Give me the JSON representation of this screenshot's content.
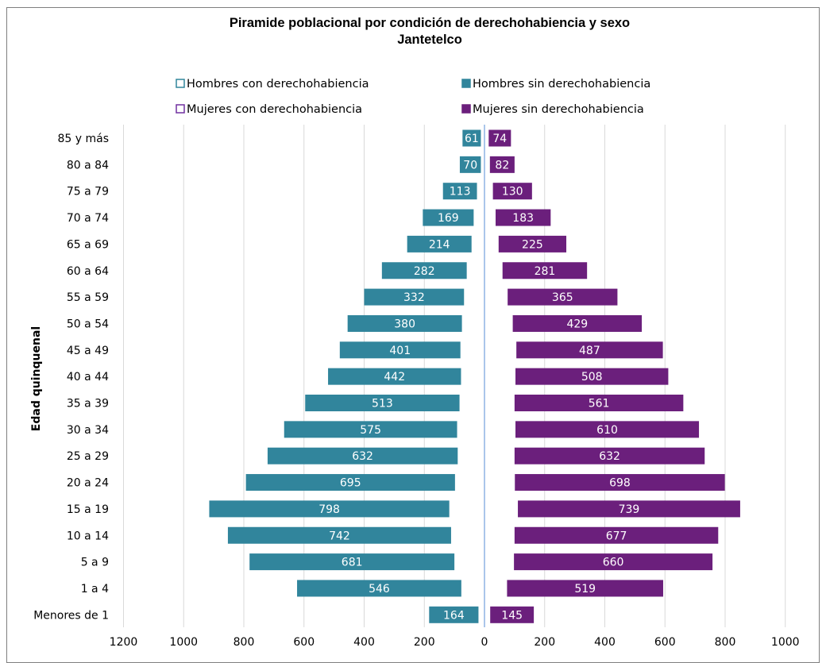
{
  "chart_data": {
    "type": "bar",
    "orientation": "horizontal-population-pyramid",
    "title": "Piramide poblacional por condición de derechohabiencia  y sexo",
    "subtitle": "Jantetelco",
    "ylabel": "Edad quinquenal",
    "xlabel": "",
    "xlim": [
      -1200,
      1000
    ],
    "x_ticks": [
      -1200,
      -1000,
      -800,
      -600,
      -400,
      -200,
      0,
      200,
      400,
      600,
      800,
      1000
    ],
    "x_tick_labels": [
      "1200",
      "1000",
      "800",
      "600",
      "400",
      "200",
      "0",
      "200",
      "400",
      "600",
      "800",
      "1000"
    ],
    "grid": true,
    "legend_position": "top",
    "categories": [
      "85 y más",
      "80 a 84",
      "75 a 79",
      "70 a 74",
      "65 a 69",
      "60 a 64",
      "55 a 59",
      "50 a 54",
      "45 a 49",
      "40 a 44",
      "35 a 39",
      "30 a 34",
      "25 a 29",
      "20 a 24",
      "15 a 19",
      "10 a 14",
      "5 a 9",
      "1 a 4",
      "Menores de 1"
    ],
    "series": [
      {
        "name": "Hombres con derechohabiencia",
        "side": "left",
        "fill": "#ffffff",
        "stroke": "#31859c",
        "values": [
          12,
          12,
          25,
          36,
          43,
          59,
          68,
          75,
          80,
          78,
          83,
          91,
          89,
          98,
          117,
          111,
          100,
          77,
          20
        ]
      },
      {
        "name": "Hombres sin derechohabiencia",
        "side": "left",
        "fill": "#31859c",
        "stroke": "#31859c",
        "values": [
          61,
          70,
          113,
          169,
          214,
          282,
          332,
          380,
          401,
          442,
          513,
          575,
          632,
          695,
          798,
          742,
          681,
          546,
          164
        ]
      },
      {
        "name": "Mujeres con derechohabiencia",
        "side": "right",
        "fill": "#ffffff",
        "stroke": "#7030a0",
        "values": [
          14,
          18,
          28,
          37,
          47,
          60,
          77,
          94,
          106,
          103,
          100,
          103,
          100,
          101,
          111,
          100,
          98,
          75,
          19
        ]
      },
      {
        "name": "Mujeres sin derechohabiencia",
        "side": "right",
        "fill": "#6b1f7c",
        "stroke": "#6b1f7c",
        "values": [
          74,
          82,
          130,
          183,
          225,
          281,
          365,
          429,
          487,
          508,
          561,
          610,
          632,
          698,
          739,
          677,
          660,
          519,
          145
        ]
      }
    ]
  }
}
